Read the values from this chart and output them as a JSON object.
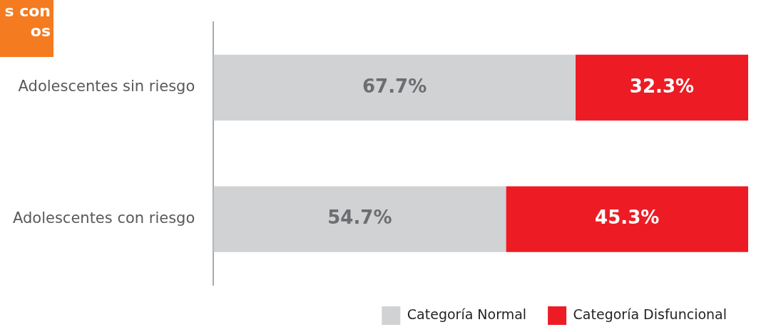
{
  "chart_data": {
    "type": "bar",
    "orientation": "horizontal",
    "stacked": true,
    "title": "s con\nos",
    "categories": [
      "Adolescentes sin riesgo",
      "Adolescentes con riesgo"
    ],
    "series": [
      {
        "name": "Categoría Normal",
        "color": "#d1d2d4",
        "values": [
          67.7,
          54.7
        ],
        "value_labels": [
          "67.7%",
          "54.7%"
        ]
      },
      {
        "name": "Categoría Disfuncional",
        "color": "#ed1c24",
        "values": [
          32.3,
          45.3
        ],
        "value_labels": [
          "32.3%",
          "45.3%"
        ]
      }
    ],
    "legend": "bottom right"
  }
}
